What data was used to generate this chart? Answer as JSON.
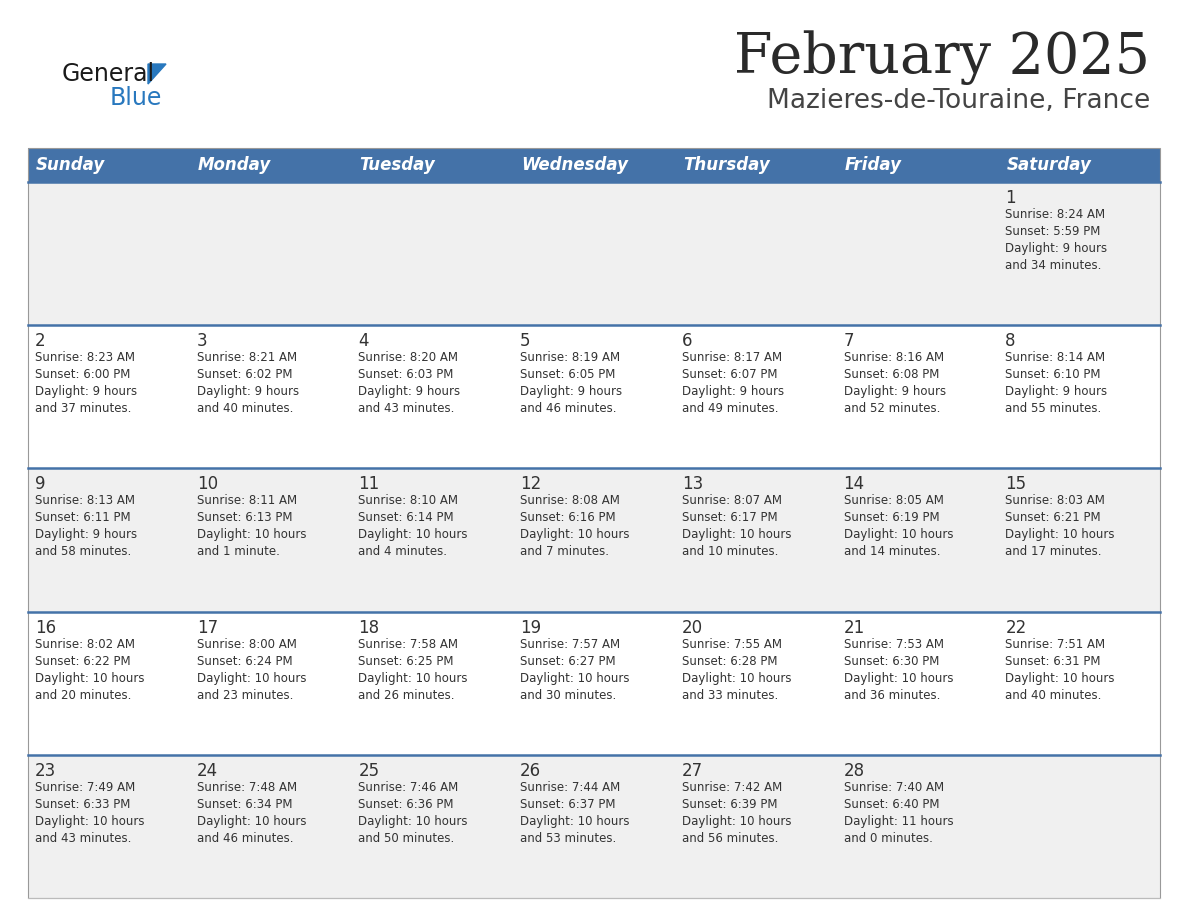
{
  "title": "February 2025",
  "subtitle": "Mazieres-de-Touraine, France",
  "header_bg": "#4472a8",
  "header_text": "#ffffff",
  "days_of_week": [
    "Sunday",
    "Monday",
    "Tuesday",
    "Wednesday",
    "Thursday",
    "Friday",
    "Saturday"
  ],
  "row_bg_odd": "#f0f0f0",
  "row_bg_even": "#ffffff",
  "cell_border_color": "#4472a8",
  "text_color": "#333333",
  "calendar": [
    [
      {
        "day": "",
        "info": ""
      },
      {
        "day": "",
        "info": ""
      },
      {
        "day": "",
        "info": ""
      },
      {
        "day": "",
        "info": ""
      },
      {
        "day": "",
        "info": ""
      },
      {
        "day": "",
        "info": ""
      },
      {
        "day": "1",
        "info": "Sunrise: 8:24 AM\nSunset: 5:59 PM\nDaylight: 9 hours\nand 34 minutes."
      }
    ],
    [
      {
        "day": "2",
        "info": "Sunrise: 8:23 AM\nSunset: 6:00 PM\nDaylight: 9 hours\nand 37 minutes."
      },
      {
        "day": "3",
        "info": "Sunrise: 8:21 AM\nSunset: 6:02 PM\nDaylight: 9 hours\nand 40 minutes."
      },
      {
        "day": "4",
        "info": "Sunrise: 8:20 AM\nSunset: 6:03 PM\nDaylight: 9 hours\nand 43 minutes."
      },
      {
        "day": "5",
        "info": "Sunrise: 8:19 AM\nSunset: 6:05 PM\nDaylight: 9 hours\nand 46 minutes."
      },
      {
        "day": "6",
        "info": "Sunrise: 8:17 AM\nSunset: 6:07 PM\nDaylight: 9 hours\nand 49 minutes."
      },
      {
        "day": "7",
        "info": "Sunrise: 8:16 AM\nSunset: 6:08 PM\nDaylight: 9 hours\nand 52 minutes."
      },
      {
        "day": "8",
        "info": "Sunrise: 8:14 AM\nSunset: 6:10 PM\nDaylight: 9 hours\nand 55 minutes."
      }
    ],
    [
      {
        "day": "9",
        "info": "Sunrise: 8:13 AM\nSunset: 6:11 PM\nDaylight: 9 hours\nand 58 minutes."
      },
      {
        "day": "10",
        "info": "Sunrise: 8:11 AM\nSunset: 6:13 PM\nDaylight: 10 hours\nand 1 minute."
      },
      {
        "day": "11",
        "info": "Sunrise: 8:10 AM\nSunset: 6:14 PM\nDaylight: 10 hours\nand 4 minutes."
      },
      {
        "day": "12",
        "info": "Sunrise: 8:08 AM\nSunset: 6:16 PM\nDaylight: 10 hours\nand 7 minutes."
      },
      {
        "day": "13",
        "info": "Sunrise: 8:07 AM\nSunset: 6:17 PM\nDaylight: 10 hours\nand 10 minutes."
      },
      {
        "day": "14",
        "info": "Sunrise: 8:05 AM\nSunset: 6:19 PM\nDaylight: 10 hours\nand 14 minutes."
      },
      {
        "day": "15",
        "info": "Sunrise: 8:03 AM\nSunset: 6:21 PM\nDaylight: 10 hours\nand 17 minutes."
      }
    ],
    [
      {
        "day": "16",
        "info": "Sunrise: 8:02 AM\nSunset: 6:22 PM\nDaylight: 10 hours\nand 20 minutes."
      },
      {
        "day": "17",
        "info": "Sunrise: 8:00 AM\nSunset: 6:24 PM\nDaylight: 10 hours\nand 23 minutes."
      },
      {
        "day": "18",
        "info": "Sunrise: 7:58 AM\nSunset: 6:25 PM\nDaylight: 10 hours\nand 26 minutes."
      },
      {
        "day": "19",
        "info": "Sunrise: 7:57 AM\nSunset: 6:27 PM\nDaylight: 10 hours\nand 30 minutes."
      },
      {
        "day": "20",
        "info": "Sunrise: 7:55 AM\nSunset: 6:28 PM\nDaylight: 10 hours\nand 33 minutes."
      },
      {
        "day": "21",
        "info": "Sunrise: 7:53 AM\nSunset: 6:30 PM\nDaylight: 10 hours\nand 36 minutes."
      },
      {
        "day": "22",
        "info": "Sunrise: 7:51 AM\nSunset: 6:31 PM\nDaylight: 10 hours\nand 40 minutes."
      }
    ],
    [
      {
        "day": "23",
        "info": "Sunrise: 7:49 AM\nSunset: 6:33 PM\nDaylight: 10 hours\nand 43 minutes."
      },
      {
        "day": "24",
        "info": "Sunrise: 7:48 AM\nSunset: 6:34 PM\nDaylight: 10 hours\nand 46 minutes."
      },
      {
        "day": "25",
        "info": "Sunrise: 7:46 AM\nSunset: 6:36 PM\nDaylight: 10 hours\nand 50 minutes."
      },
      {
        "day": "26",
        "info": "Sunrise: 7:44 AM\nSunset: 6:37 PM\nDaylight: 10 hours\nand 53 minutes."
      },
      {
        "day": "27",
        "info": "Sunrise: 7:42 AM\nSunset: 6:39 PM\nDaylight: 10 hours\nand 56 minutes."
      },
      {
        "day": "28",
        "info": "Sunrise: 7:40 AM\nSunset: 6:40 PM\nDaylight: 11 hours\nand 0 minutes."
      },
      {
        "day": "",
        "info": ""
      }
    ]
  ],
  "logo_general_color": "#1a1a1a",
  "logo_blue_color": "#2878be",
  "logo_triangle_color": "#2878be",
  "title_fontsize": 40,
  "subtitle_fontsize": 19,
  "header_fontsize": 12,
  "day_num_fontsize": 12,
  "info_fontsize": 8.5
}
